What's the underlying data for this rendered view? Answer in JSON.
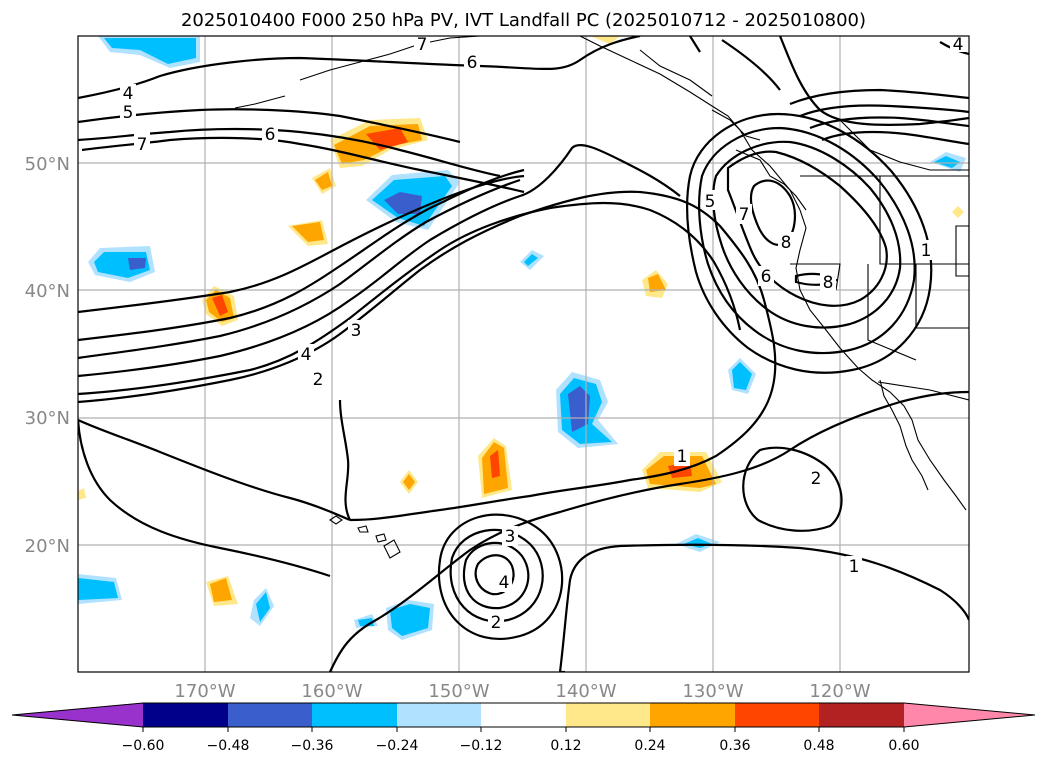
{
  "title": "2025010400 F000 250 hPa PV, IVT Landfall PC (2025010712 - 2025010800)",
  "map": {
    "lon_range": [
      -180,
      -110
    ],
    "lat_range": [
      10,
      60
    ],
    "lat_labels": [
      "50°N",
      "40°N",
      "30°N",
      "20°N"
    ],
    "lon_labels": [
      "170°W",
      "160°W",
      "150°W",
      "140°W",
      "130°W",
      "120°W"
    ],
    "gridlines": true
  },
  "colorbar": {
    "extend": "both",
    "ticks": [
      "−0.60",
      "−0.48",
      "−0.36",
      "−0.24",
      "−0.12",
      "0.12",
      "0.24",
      "0.36",
      "0.48",
      "0.60"
    ],
    "colors": [
      "#9932cc",
      "#00008b",
      "#3a5fcd",
      "#00bfff",
      "#b0e2ff",
      "#ffffff",
      "#ffe88a",
      "#ffa500",
      "#ff4500",
      "#b22222",
      "#ff88aa"
    ]
  },
  "contour_labels": [
    "4",
    "5",
    "7",
    "6",
    "6",
    "7",
    "4",
    "3",
    "2",
    "5",
    "7",
    "8",
    "6",
    "8",
    "1",
    "1",
    "2",
    "3",
    "4",
    "2",
    "1",
    "4"
  ]
}
